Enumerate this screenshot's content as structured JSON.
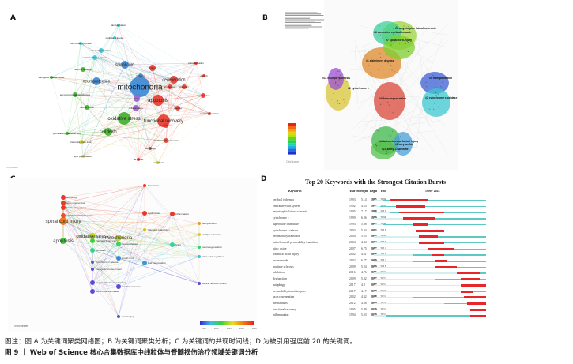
{
  "panels": {
    "a": "A",
    "b": "B",
    "c": "C",
    "d": "D"
  },
  "panel_a": {
    "nodes": [
      {
        "label": "mitochondria",
        "cluster": "blue"
      },
      {
        "label": "apoptosis",
        "cluster": "red"
      },
      {
        "label": "oxidative stress",
        "cluster": "green"
      },
      {
        "label": "cell death",
        "cluster": "green"
      },
      {
        "label": "spinal cord",
        "cluster": "blue"
      },
      {
        "label": "functional recovery",
        "cluster": "red"
      },
      {
        "label": "neuroprotection",
        "cluster": "blue"
      },
      {
        "label": "neurodegeneration",
        "cluster": "cyan"
      },
      {
        "label": "central-nervous-system",
        "cluster": "cyan"
      },
      {
        "label": "mouse model",
        "cluster": "green"
      },
      {
        "label": "traumatic brain injury",
        "cluster": "yellow"
      },
      {
        "label": "lipid peroxidation",
        "cluster": "yellow"
      },
      {
        "label": "inflammation",
        "cluster": "purple"
      },
      {
        "label": "brain",
        "cluster": "purple"
      },
      {
        "label": "regeneration",
        "cluster": "red"
      },
      {
        "label": "axon regeneration",
        "cluster": "red"
      },
      {
        "label": "permeability transition pore",
        "cluster": "green"
      },
      {
        "label": "amyotrophic-lateral-sclerosis",
        "cluster": "green"
      },
      {
        "label": "transgenic mouse model",
        "cluster": "green"
      },
      {
        "label": "nitric-oxide synthase",
        "cluster": "cyan"
      },
      {
        "label": "demyelination",
        "cluster": "cyan"
      },
      {
        "label": "multiple sclerosis",
        "cluster": "cyan"
      },
      {
        "label": "ferroptosis",
        "cluster": "yellow"
      },
      {
        "label": "rat model",
        "cluster": "red"
      },
      {
        "label": "mechanisms",
        "cluster": "red"
      },
      {
        "label": "injury",
        "cluster": "red"
      },
      {
        "label": "degeneration",
        "cluster": "red"
      },
      {
        "label": "recovery",
        "cluster": "red"
      },
      {
        "label": "transplantation",
        "cluster": "red"
      },
      {
        "label": "growth",
        "cluster": "red"
      },
      {
        "label": "ischemia",
        "cluster": "blue"
      },
      {
        "label": "mitochondrial dysfunction",
        "cluster": "red"
      },
      {
        "label": "autophagy",
        "cluster": "red"
      },
      {
        "label": "cerebral ischemia",
        "cluster": "green"
      },
      {
        "label": "expression",
        "cluster": "red"
      },
      {
        "label": "disease",
        "cluster": "red"
      }
    ],
    "vosviewer_tag": "VOSviewer"
  },
  "panel_b": {
    "clusters": [
      {
        "label": "#0 axon regeneration",
        "color": "#d9473a"
      },
      {
        "label": "#1 alzheimers disease",
        "color": "#e08a2c"
      },
      {
        "label": "#2 cytochrome c",
        "color": "#d8c536"
      },
      {
        "label": "#3 amyotrophic lateral sclerosis",
        "color": "#9bd43a"
      },
      {
        "label": "#4 ischemia-reperfusion injury",
        "color": "#3fb84a"
      },
      {
        "label": "#5 transplantation",
        "color": "#3a5fd6"
      },
      {
        "label": "#6 controlled cortical impact",
        "color": "#3ccf9a"
      },
      {
        "label": "#7 spinal cord injury",
        "color": "#7fcf30"
      },
      {
        "label": "#7 cytochrome c oxidase",
        "color": "#3cc7d0"
      },
      {
        "label": "#8 acrylamide",
        "color": "#4aa0d8"
      },
      {
        "label": "#10 acetyl-l-carnitine",
        "color": "#56c04a"
      },
      {
        "label": "#11 multiple sclerosis",
        "color": "#9b4fd6"
      }
    ],
    "citespace_tag": "CiteSpace"
  },
  "panel_c": {
    "nodes": [
      {
        "label": "spinal cord injury",
        "color": "#ef7b1a"
      },
      {
        "label": "oxidative stress",
        "color": "#c8d620"
      },
      {
        "label": "mitochondria",
        "color": "#b8d81e"
      },
      {
        "label": "apoptosis",
        "color": "#3fc93a"
      },
      {
        "label": "autophagy",
        "color": "#e53a2a"
      },
      {
        "label": "axon regeneration",
        "color": "#e53a2a"
      },
      {
        "label": "functional recovery",
        "color": "#e53a2a"
      },
      {
        "label": "mitochondrial dysfunction",
        "color": "#e8512a"
      },
      {
        "label": "ferroptosis",
        "color": "#e53a2a"
      },
      {
        "label": "dysfunction",
        "color": "#e53a2a"
      },
      {
        "label": "inflammation",
        "color": "#e53a2a"
      },
      {
        "label": "traumatic brain injury",
        "color": "#3fd03a"
      },
      {
        "label": "cell death",
        "color": "#38d28a"
      },
      {
        "label": "neuroprotection",
        "color": "#3ad06a"
      },
      {
        "label": "traumatic brain injury",
        "color": "#d8c020"
      },
      {
        "label": "neurodegeneration",
        "color": "#3ad07a"
      },
      {
        "label": "spinal cord",
        "color": "#3a8ad8"
      },
      {
        "label": "lipid peroxidation",
        "color": "#3a9ad8"
      },
      {
        "label": "nitric-oxide synthase",
        "color": "#3ac0d8"
      },
      {
        "label": "amyotrophic lateral sclerosis",
        "color": "#5a4ad8"
      },
      {
        "label": "superoxide dismutase",
        "color": "#5a4ad8"
      },
      {
        "label": "cerebral ischemia",
        "color": "#5a4ad8"
      },
      {
        "label": "central nervous system",
        "color": "#5a4ad8"
      },
      {
        "label": "demyelination",
        "color": "#e89a20"
      },
      {
        "label": "multiple sclerosis",
        "color": "#d8d020"
      },
      {
        "label": "spinal injury",
        "color": "#5a4ad8"
      },
      {
        "label": "brain",
        "color": "#3ad0a0"
      },
      {
        "label": "cytochrome c release",
        "color": "#3a6ad8"
      },
      {
        "label": "transgenic mouse model",
        "color": "#5a4ad8"
      }
    ],
    "legend_ticks": [
      "2010",
      "2012",
      "2014",
      "2016",
      "2018"
    ],
    "vosviewer_tag": "VOSviewer"
  },
  "panel_d": {
    "title": "Top 20 Keywords with the Strongest Citation Bursts",
    "headers": {
      "keywords": "Keywords",
      "year": "Year",
      "strength": "Strength",
      "begin": "Begin",
      "end": "End",
      "range": "1990 - 2024"
    },
    "range_start": 1990,
    "range_end": 2024,
    "colors": {
      "burst": "#e8262a",
      "active": "#5ec8c4",
      "inactive": "#d6eeee"
    },
    "rows": [
      {
        "keyword": "cerebral ischemia",
        "year": "1993",
        "strength": "5.14",
        "begin": "1995",
        "end": "2006"
      },
      {
        "keyword": "central nervous system",
        "year": "1992",
        "strength": "4.53",
        "begin": "1997",
        "end": "2005"
      },
      {
        "keyword": "amyotrophic lateral sclerosis",
        "year": "1995",
        "strength": "7.17",
        "begin": "1998",
        "end": "2011"
      },
      {
        "keyword": "cytochrome c",
        "year": "1999",
        "strength": "6.26",
        "begin": "1999",
        "end": "2008"
      },
      {
        "keyword": "superoxide dismutase",
        "year": "1993",
        "strength": "5.88",
        "begin": "2002",
        "end": "2006"
      },
      {
        "keyword": "cytochrome c release",
        "year": "2003",
        "strength": "5.34",
        "begin": "2003",
        "end": "2011"
      },
      {
        "keyword": "permeability transition",
        "year": "2004",
        "strength": "5.25",
        "begin": "2004",
        "end": "2009"
      },
      {
        "keyword": "mitochondrial permeability transition",
        "year": "2004",
        "strength": "4.84",
        "begin": "2004",
        "end": "2011"
      },
      {
        "keyword": "nitric oxide",
        "year": "2007",
        "strength": "6.75",
        "begin": "2007",
        "end": "2014"
      },
      {
        "keyword": "traumatic brain injury",
        "year": "2002",
        "strength": "4.81",
        "begin": "2008",
        "end": "2011"
      },
      {
        "keyword": "mouse model",
        "year": "2002",
        "strength": "6.77",
        "begin": "2009",
        "end": "2012"
      },
      {
        "keyword": "multiple sclerosis",
        "year": "2009",
        "strength": "5.24",
        "begin": "2009",
        "end": "2015"
      },
      {
        "keyword": "inhibition",
        "year": "2016",
        "strength": "4.76",
        "begin": "2016",
        "end": "2022"
      },
      {
        "keyword": "dysfunction",
        "year": "2009",
        "strength": "5.82",
        "begin": "2017",
        "end": "2022"
      },
      {
        "keyword": "autophagy",
        "year": "2017",
        "strength": "4.8",
        "begin": "2017",
        "end": "2024"
      },
      {
        "keyword": "permeability transition pore",
        "year": "2017",
        "strength": "4.17",
        "begin": "2017",
        "end": "2020"
      },
      {
        "keyword": "axon regeneration",
        "year": "2002",
        "strength": "4.32",
        "begin": "2018",
        "end": "2024"
      },
      {
        "keyword": "mechanisms",
        "year": "2012",
        "strength": "4.56",
        "begin": "2019",
        "end": "2024"
      },
      {
        "keyword": "functional recovery",
        "year": "1995",
        "strength": "5.49",
        "begin": "2020",
        "end": "2024"
      },
      {
        "keyword": "inflammation",
        "year": "1994",
        "strength": "5.03",
        "begin": "2020",
        "end": "2024"
      }
    ]
  },
  "caption": {
    "note": "图注：图 A 为关键词聚类网络图；B 为关键词聚类分析；C 为关键词的共现时间线；D 为被引用强度前 20 的关键词。",
    "figure": "图 9 ｜ Web of Science 核心合集数据库中线粒体与脊髓损伤治疗领域关键词分析"
  }
}
